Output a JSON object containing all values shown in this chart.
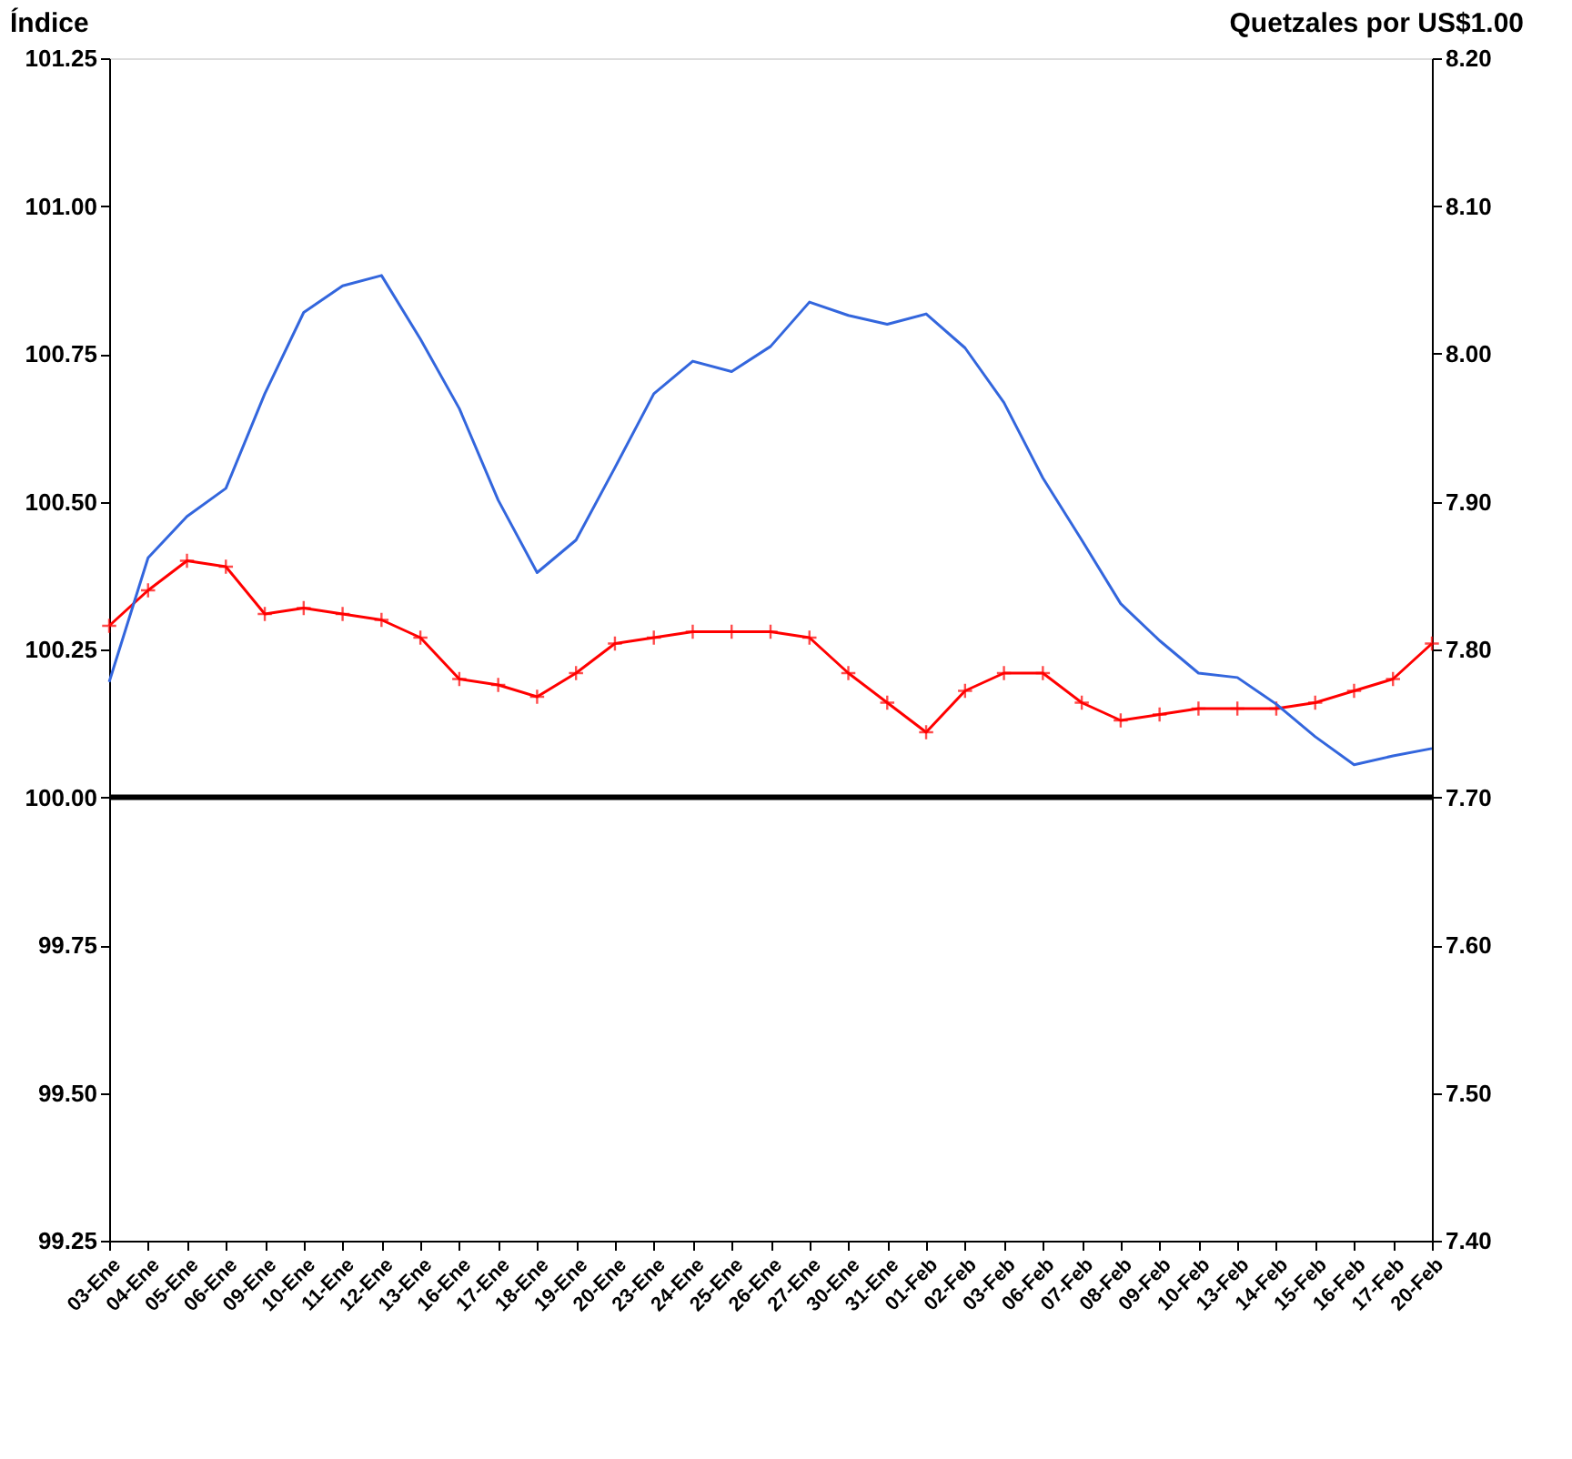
{
  "chart_data": {
    "type": "line",
    "ylabel": "Índice",
    "y2label": "Quetzales por US$1.00",
    "categories": [
      "03-Ene",
      "04-Ene",
      "05-Ene",
      "06-Ene",
      "09-Ene",
      "10-Ene",
      "11-Ene",
      "12-Ene",
      "13-Ene",
      "16-Ene",
      "17-Ene",
      "18-Ene",
      "19-Ene",
      "20-Ene",
      "23-Ene",
      "24-Ene",
      "25-Ene",
      "26-Ene",
      "27-Ene",
      "30-Ene",
      "31-Ene",
      "01-Feb",
      "02-Feb",
      "03-Feb",
      "06-Feb",
      "07-Feb",
      "08-Feb",
      "09-Feb",
      "10-Feb",
      "13-Feb",
      "14-Feb",
      "15-Feb",
      "16-Feb",
      "17-Feb",
      "20-Feb"
    ],
    "series": [
      {
        "color": "#ff0000",
        "marker": "cross",
        "values": [
          100.29,
          100.35,
          100.4,
          100.39,
          100.31,
          100.32,
          100.31,
          100.3,
          100.27,
          100.2,
          100.19,
          100.17,
          100.21,
          100.26,
          100.27,
          100.28,
          100.28,
          100.28,
          100.27,
          100.21,
          100.16,
          100.11,
          100.18,
          100.21,
          100.21,
          100.16,
          100.13,
          100.14,
          100.15,
          100.15,
          100.15,
          100.16,
          100.18,
          100.2,
          100.26
        ]
      },
      {
        "color": "#3366dd",
        "marker": "none",
        "axis": "y2",
        "values": [
          7.778,
          7.862,
          7.89,
          7.909,
          7.973,
          8.028,
          8.046,
          8.053,
          8.01,
          7.963,
          7.901,
          7.852,
          7.874,
          7.923,
          7.973,
          7.995,
          7.988,
          8.005,
          8.035,
          8.026,
          8.02,
          8.027,
          8.004,
          7.967,
          7.916,
          7.874,
          7.831,
          7.806,
          7.784,
          7.781,
          7.763,
          7.741,
          7.722,
          7.728,
          7.733
        ]
      }
    ],
    "ylim": [
      99.25,
      101.25
    ],
    "yticks": [
      {
        "value": 99.25,
        "label": "99.25"
      },
      {
        "value": 99.5,
        "label": "99.50"
      },
      {
        "value": 99.75,
        "label": "99.75"
      },
      {
        "value": 100,
        "label": "100.00"
      },
      {
        "value": 100.25,
        "label": "100.25"
      },
      {
        "value": 100.5,
        "label": "100.50"
      },
      {
        "value": 100.75,
        "label": "100.75"
      },
      {
        "value": 101,
        "label": "101.00"
      },
      {
        "value": 101.25,
        "label": "101.25"
      }
    ],
    "y2lim": [
      7.4,
      8.2
    ],
    "y2ticks": [
      {
        "value": 7.4,
        "label": "7.40"
      },
      {
        "value": 7.5,
        "label": "7.50"
      },
      {
        "value": 7.6,
        "label": "7.60"
      },
      {
        "value": 7.7,
        "label": "7.70"
      },
      {
        "value": 7.8,
        "label": "7.80"
      },
      {
        "value": 7.9,
        "label": "7.90"
      },
      {
        "value": 8.0,
        "label": "8.00"
      },
      {
        "value": 8.1,
        "label": "8.10"
      },
      {
        "value": 8.2,
        "label": "8.20"
      }
    ],
    "ref_lines": [
      {
        "axis": "y",
        "value": 100,
        "color": "#000000"
      }
    ],
    "grid": false,
    "line_style": "solid"
  }
}
